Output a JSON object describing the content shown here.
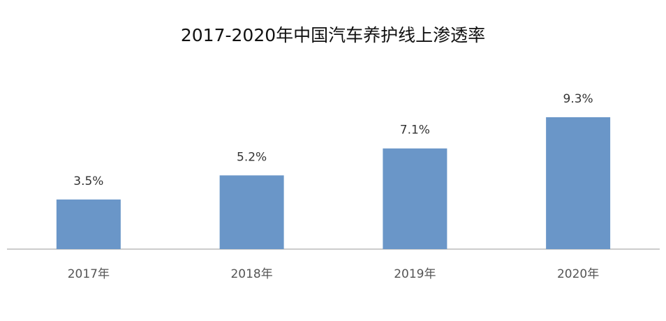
{
  "chart_data": {
    "type": "bar",
    "title": "2017-2020年中国汽车养护线上渗透率",
    "categories": [
      "2017年",
      "2018年",
      "2019年",
      "2020年"
    ],
    "values": [
      3.5,
      5.2,
      7.1,
      9.3
    ],
    "value_labels": [
      "3.5%",
      "5.2%",
      "7.1%",
      "9.3%"
    ],
    "color": "#6a96c8"
  }
}
